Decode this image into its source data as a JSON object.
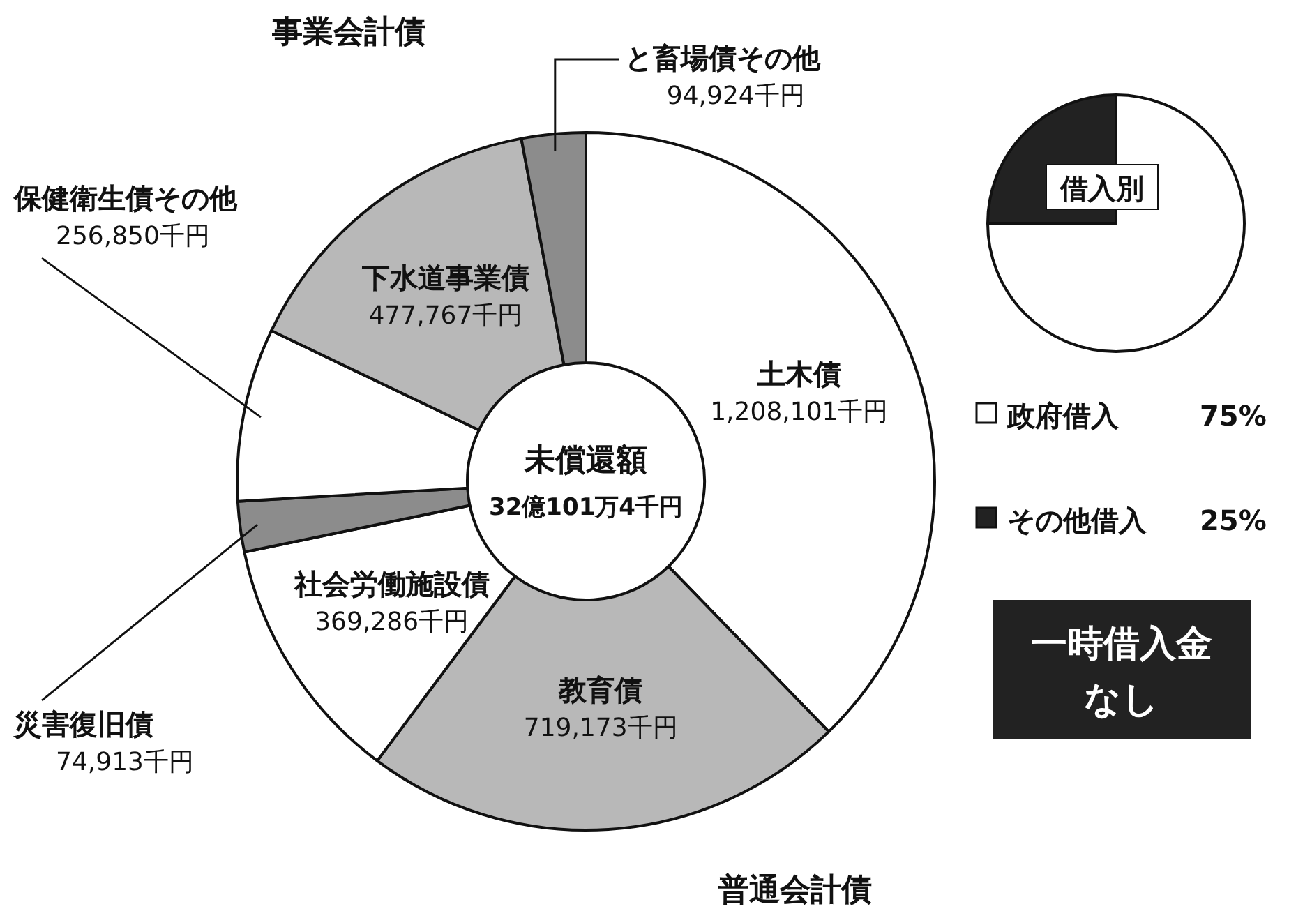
{
  "chart_data": [
    {
      "type": "donut",
      "categories": [
        "土木債",
        "教育債",
        "社会労働施設債",
        "災害復旧債",
        "保健衛生債その他",
        "下水道事業債",
        "と畜場債その他"
      ],
      "values": [
        1208101,
        719173,
        369286,
        74913,
        256850,
        477767,
        94924
      ],
      "value_labels": [
        "1,208,101千円",
        "719,173千円",
        "369,286千円",
        "74,913千円",
        "256,850千円",
        "477,767千円",
        "94,924千円"
      ],
      "colors": [
        "#ffffff",
        "#b8b8b8",
        "#ffffff",
        "#8c8c8c",
        "#ffffff",
        "#b8b8b8",
        "#8c8c8c"
      ],
      "annotations": [
        "未償還額",
        "32億101万4千円",
        "事業会計債",
        "普通会計債"
      ]
    },
    {
      "type": "pie",
      "title": "借入別",
      "categories": [
        "政府借入",
        "その他借入"
      ],
      "values": [
        75,
        25
      ],
      "value_labels": [
        "75%",
        "25%"
      ],
      "legend": "bottom left",
      "colors": [
        "#ffffff",
        "#222222"
      ],
      "annotations": [
        "一時借入金",
        "なし"
      ]
    }
  ]
}
